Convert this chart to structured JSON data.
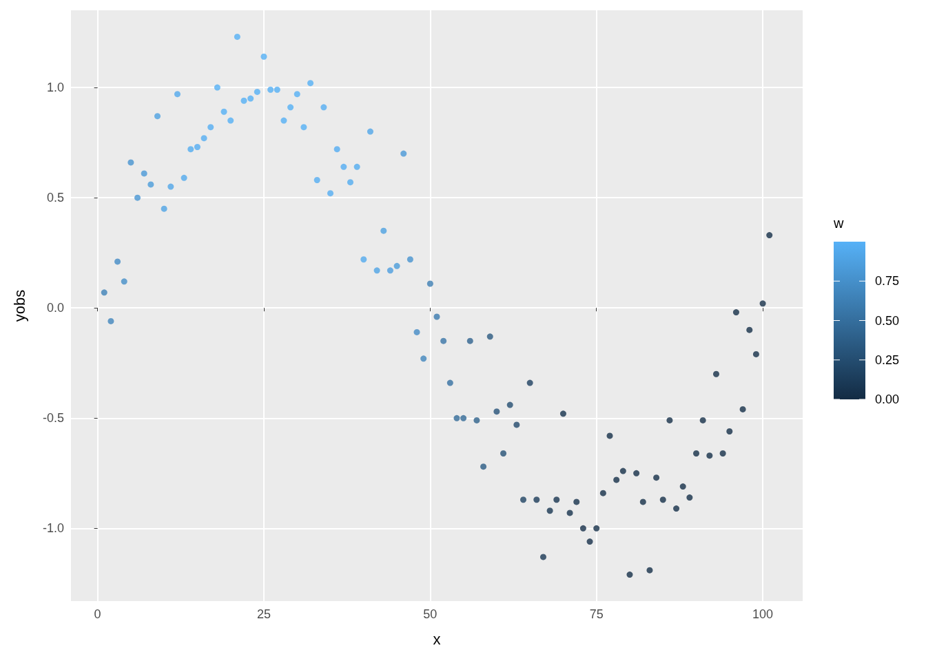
{
  "chart_data": {
    "type": "scatter",
    "xlabel": "x",
    "ylabel": "yobs",
    "legend_title": "w",
    "x": [
      1,
      2,
      3,
      4,
      5,
      6,
      7,
      8,
      9,
      10,
      11,
      12,
      13,
      14,
      15,
      16,
      17,
      18,
      19,
      20,
      21,
      22,
      23,
      24,
      25,
      26,
      27,
      28,
      29,
      30,
      31,
      32,
      33,
      34,
      35,
      36,
      37,
      38,
      39,
      40,
      41,
      42,
      43,
      44,
      45,
      46,
      47,
      48,
      49,
      50,
      51,
      52,
      53,
      54,
      55,
      56,
      57,
      58,
      59,
      60,
      61,
      62,
      63,
      64,
      65,
      66,
      67,
      68,
      69,
      70,
      71,
      72,
      73,
      74,
      75,
      76,
      77,
      78,
      79,
      80,
      81,
      82,
      83,
      84,
      85,
      86,
      87,
      88,
      89,
      90,
      91,
      92,
      93,
      94,
      95,
      96,
      97,
      98,
      99,
      100,
      101
    ],
    "values": [
      0.07,
      -0.06,
      0.21,
      0.12,
      0.66,
      0.5,
      0.61,
      0.56,
      0.87,
      0.45,
      0.55,
      0.97,
      0.59,
      0.72,
      0.73,
      0.77,
      0.82,
      1.0,
      0.89,
      0.85,
      1.23,
      0.94,
      0.95,
      0.98,
      1.14,
      0.99,
      0.99,
      0.85,
      0.91,
      0.97,
      0.82,
      1.02,
      0.58,
      0.91,
      0.52,
      0.72,
      0.64,
      0.57,
      0.64,
      0.22,
      0.8,
      0.17,
      0.35,
      0.17,
      0.19,
      0.7,
      0.22,
      -0.11,
      -0.23,
      0.11,
      -0.04,
      -0.15,
      -0.34,
      -0.5,
      -0.5,
      -0.15,
      -0.51,
      -0.72,
      -0.13,
      -0.47,
      -0.66,
      -0.44,
      -0.53,
      -0.87,
      -0.34,
      -0.87,
      -1.13,
      -0.92,
      -0.87,
      -0.48,
      -0.93,
      -0.88,
      -1.0,
      -1.06,
      -1.0,
      -0.84,
      -0.58,
      -0.78,
      -0.74,
      -1.21,
      -0.75,
      -0.88,
      -1.19,
      -0.77,
      -0.87,
      -0.51,
      -0.91,
      -0.81,
      -0.86,
      -0.66,
      -0.51,
      -0.67,
      -0.3,
      -0.66,
      -0.56,
      -0.02,
      -0.46,
      -0.1,
      -0.21,
      0.02,
      0.33
    ],
    "cvalues": [
      0.65,
      0.68,
      0.72,
      0.74,
      0.78,
      0.8,
      0.82,
      0.84,
      0.88,
      0.9,
      0.92,
      0.94,
      0.95,
      0.96,
      0.97,
      0.98,
      0.98,
      0.99,
      0.99,
      0.99,
      0.99,
      0.99,
      0.99,
      0.99,
      0.99,
      0.99,
      0.99,
      0.99,
      0.99,
      0.99,
      0.99,
      0.99,
      0.98,
      0.98,
      0.98,
      0.97,
      0.97,
      0.96,
      0.96,
      0.95,
      0.92,
      0.9,
      0.88,
      0.86,
      0.84,
      0.82,
      0.78,
      0.72,
      0.68,
      0.62,
      0.6,
      0.56,
      0.52,
      0.48,
      0.46,
      0.42,
      0.4,
      0.36,
      0.34,
      0.3,
      0.28,
      0.25,
      0.22,
      0.18,
      0.16,
      0.12,
      0.1,
      0.08,
      0.07,
      0.06,
      0.05,
      0.05,
      0.04,
      0.04,
      0.03,
      0.03,
      0.03,
      0.03,
      0.03,
      0.03,
      0.03,
      0.03,
      0.03,
      0.03,
      0.03,
      0.03,
      0.03,
      0.03,
      0.03,
      0.03,
      0.03,
      0.03,
      0.03,
      0.03,
      0.03,
      0.03,
      0.03,
      0.03,
      0.03,
      0.03,
      0.03
    ],
    "xlim": [
      -4,
      106
    ],
    "xticks": [
      0,
      25,
      50,
      75,
      100
    ],
    "ylim": [
      -1.33,
      1.35
    ],
    "yticks": [
      {
        "value": -1,
        "label": "-1.0"
      },
      {
        "value": -0.5,
        "label": "-0.5"
      },
      {
        "value": 0,
        "label": "0.0"
      },
      {
        "value": 0.5,
        "label": "0.5"
      },
      {
        "value": 1,
        "label": "1.0"
      }
    ],
    "clim": [
      0,
      1
    ],
    "cticks": [
      {
        "value": 0,
        "label": "0.00"
      },
      {
        "value": 0.25,
        "label": "0.25"
      },
      {
        "value": 0.5,
        "label": "0.50"
      },
      {
        "value": 0.75,
        "label": "0.75"
      }
    ],
    "grid": true,
    "marker": "circle"
  }
}
